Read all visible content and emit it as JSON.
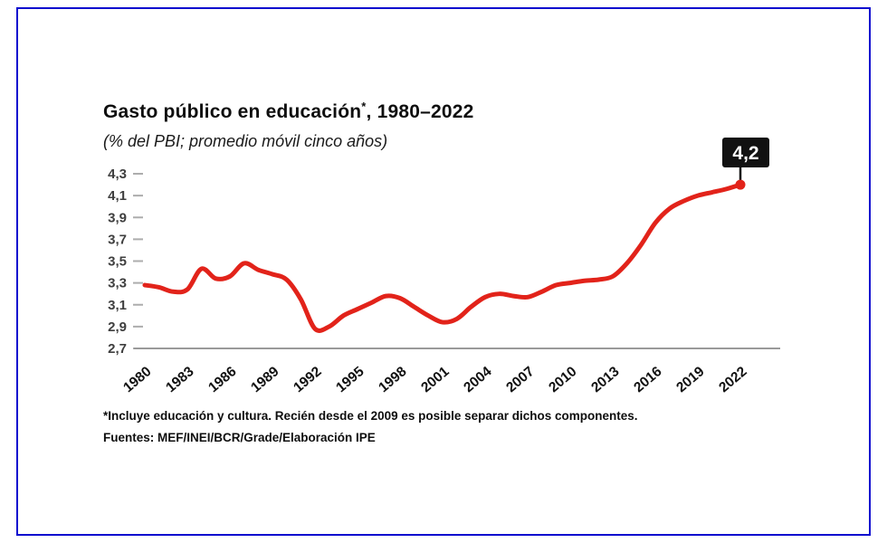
{
  "frame": {
    "border_color": "#0a08cf"
  },
  "chart": {
    "title_main": "Gasto público en educación",
    "title_sup": "*",
    "title_tail": ", 1980–2022",
    "subtitle": "(% del PBI; promedio móvil cinco años)",
    "footnote": "*Incluye educación y cultura. Recién desde el 2009 es posible separar dichos componentes.",
    "sources": "Fuentes: MEF/INEI/BCR/Grade/Elaboración IPE"
  },
  "chart_data": {
    "type": "line",
    "title": "Gasto público en educación*, 1980–2022",
    "subtitle": "(% del PBI; promedio móvil cinco años)",
    "x": [
      1980,
      1981,
      1982,
      1983,
      1984,
      1985,
      1986,
      1987,
      1988,
      1989,
      1990,
      1991,
      1992,
      1993,
      1994,
      1995,
      1996,
      1997,
      1998,
      1999,
      2000,
      2001,
      2002,
      2003,
      2004,
      2005,
      2006,
      2007,
      2008,
      2009,
      2010,
      2011,
      2012,
      2013,
      2014,
      2015,
      2016,
      2017,
      2018,
      2019,
      2020,
      2021,
      2022
    ],
    "values": [
      3.28,
      3.26,
      3.22,
      3.24,
      3.43,
      3.34,
      3.36,
      3.48,
      3.42,
      3.38,
      3.33,
      3.15,
      2.88,
      2.9,
      3.0,
      3.06,
      3.12,
      3.18,
      3.16,
      3.08,
      3.0,
      2.94,
      2.97,
      3.08,
      3.17,
      3.2,
      3.18,
      3.17,
      3.22,
      3.28,
      3.3,
      3.32,
      3.33,
      3.36,
      3.48,
      3.65,
      3.85,
      3.98,
      4.05,
      4.1,
      4.13,
      4.16,
      4.2
    ],
    "ylim": [
      2.7,
      4.3
    ],
    "yticks": [
      4.3,
      4.1,
      3.9,
      3.7,
      3.5,
      3.3,
      3.1,
      2.9,
      2.7
    ],
    "xticks": [
      1980,
      1983,
      1986,
      1989,
      1992,
      1995,
      1998,
      2001,
      2004,
      2007,
      2010,
      2013,
      2016,
      2019,
      2022
    ],
    "xlabel": "",
    "ylabel": "% del PBI",
    "grid": false,
    "legend": false,
    "line_color": "#e2231a",
    "axis_color": "#9a9a9a",
    "tick_color": "#adadad",
    "ytick_label_color": "#3f3f3f",
    "annotation": {
      "x": 2022,
      "value": 4.2,
      "label": "4,2",
      "bg": "#111111",
      "fg": "#ffffff"
    }
  }
}
